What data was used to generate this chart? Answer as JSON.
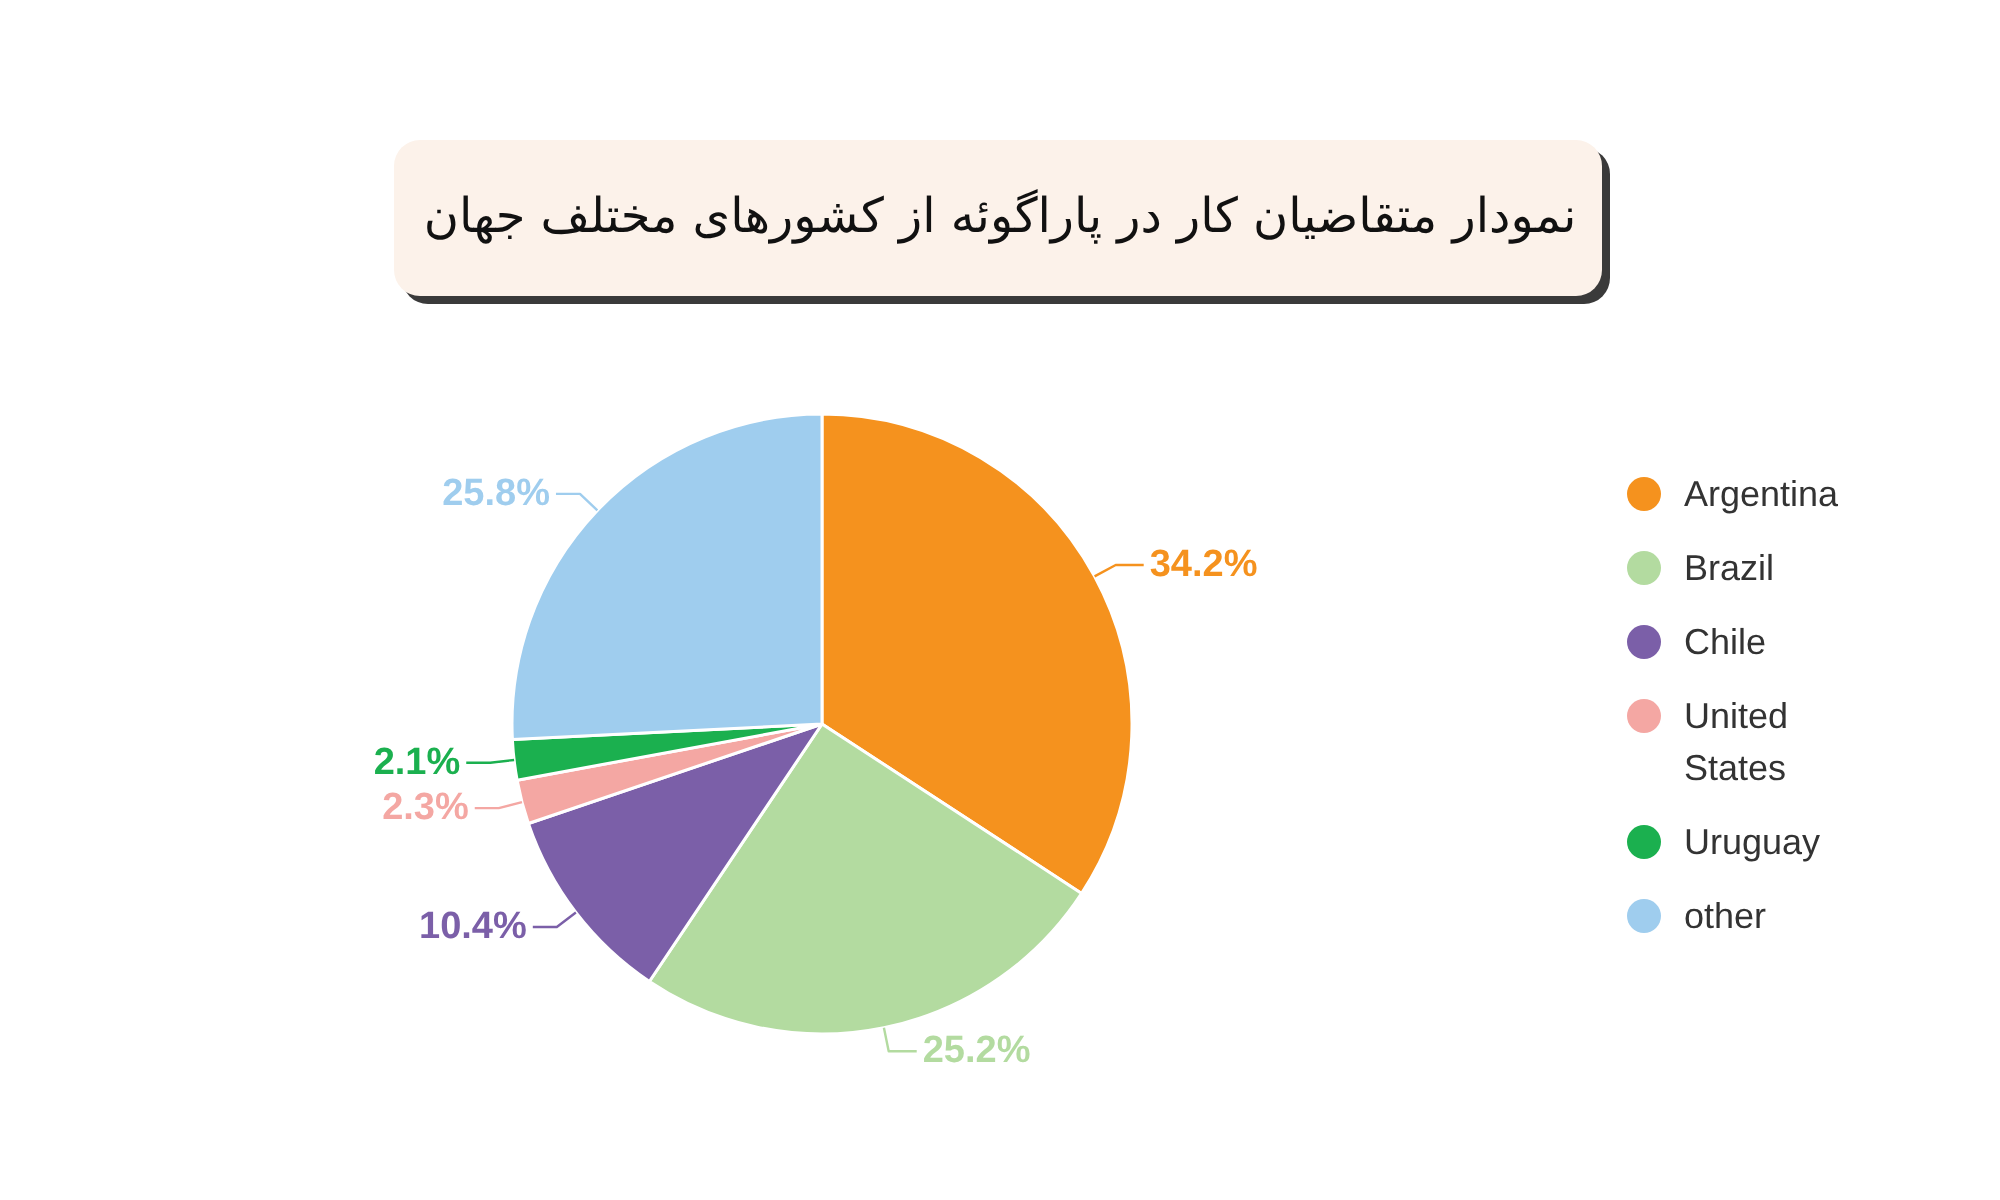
{
  "chart_data": {
    "type": "pie",
    "title": "نمودار متقاضیان کار در پاراگوئه از کشورهای مختلف جهان",
    "categories": [
      "Argentina",
      "Brazil",
      "Chile",
      "United States",
      "Uruguay",
      "other"
    ],
    "values": [
      34.2,
      25.2,
      10.4,
      2.3,
      2.1,
      25.8
    ],
    "colors": [
      "#f5921e",
      "#b3dba0",
      "#7b5fa8",
      "#f4a7a3",
      "#1bb04f",
      "#9fcdee"
    ],
    "value_labels": [
      "34.2%",
      "25.2%",
      "10.4%",
      "2.3%",
      "2.1%",
      "25.8%"
    ],
    "legend": "right"
  }
}
